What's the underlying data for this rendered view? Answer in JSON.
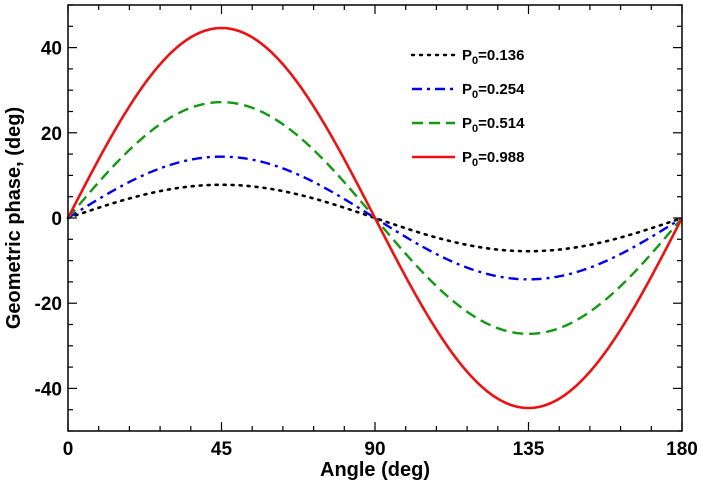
{
  "chart_data": {
    "type": "line",
    "title": "",
    "xlabel": "Angle (deg)",
    "ylabel": "Geometric phase, (deg)",
    "xlim": [
      0,
      180
    ],
    "ylim": [
      -50,
      50
    ],
    "xticks": [
      0,
      45,
      90,
      135,
      180
    ],
    "yticks": [
      -40,
      -20,
      0,
      20,
      40
    ],
    "xtick_labels": [
      "0",
      "45",
      "90",
      "135",
      "180"
    ],
    "ytick_labels": [
      "-40",
      "-20",
      "0",
      "20",
      "40"
    ],
    "grid": false,
    "legend_position": "top-right",
    "x": [
      0,
      15,
      30,
      45,
      60,
      75,
      90,
      105,
      120,
      135,
      150,
      165,
      180
    ],
    "series": [
      {
        "name": "P0=0.136",
        "label_main": "P",
        "label_sub": "0",
        "label_value": "=0.136",
        "color": "#000000",
        "style": "dotted",
        "amplitude": 7.8,
        "values": [
          0,
          3.9,
          6.75,
          7.8,
          6.75,
          3.9,
          0,
          -3.9,
          -6.75,
          -7.8,
          -6.75,
          -3.9,
          0
        ]
      },
      {
        "name": "P0=0.254",
        "label_main": "P",
        "label_sub": "0",
        "label_value": "=0.254",
        "color": "#0000ee",
        "style": "dashdot",
        "amplitude": 14.4,
        "values": [
          0,
          7.2,
          12.5,
          14.4,
          12.5,
          7.2,
          0,
          -7.2,
          -12.5,
          -14.4,
          -12.5,
          -7.2,
          0
        ]
      },
      {
        "name": "P0=0.514",
        "label_main": "P",
        "label_sub": "0",
        "label_value": "=0.514",
        "color": "#119911",
        "style": "dashed",
        "amplitude": 27.2,
        "values": [
          0,
          13.6,
          23.6,
          27.2,
          23.6,
          13.6,
          0,
          -13.6,
          -23.6,
          -27.2,
          -23.6,
          -13.6,
          0
        ]
      },
      {
        "name": "P0=0.988",
        "label_main": "P",
        "label_sub": "0",
        "label_value": "=0.988",
        "color": "#ee1111",
        "style": "solid",
        "amplitude": 44.6,
        "values": [
          0,
          22.3,
          38.6,
          44.6,
          38.6,
          22.3,
          0,
          -22.3,
          -38.6,
          -44.6,
          -38.6,
          -22.3,
          0
        ]
      }
    ]
  }
}
